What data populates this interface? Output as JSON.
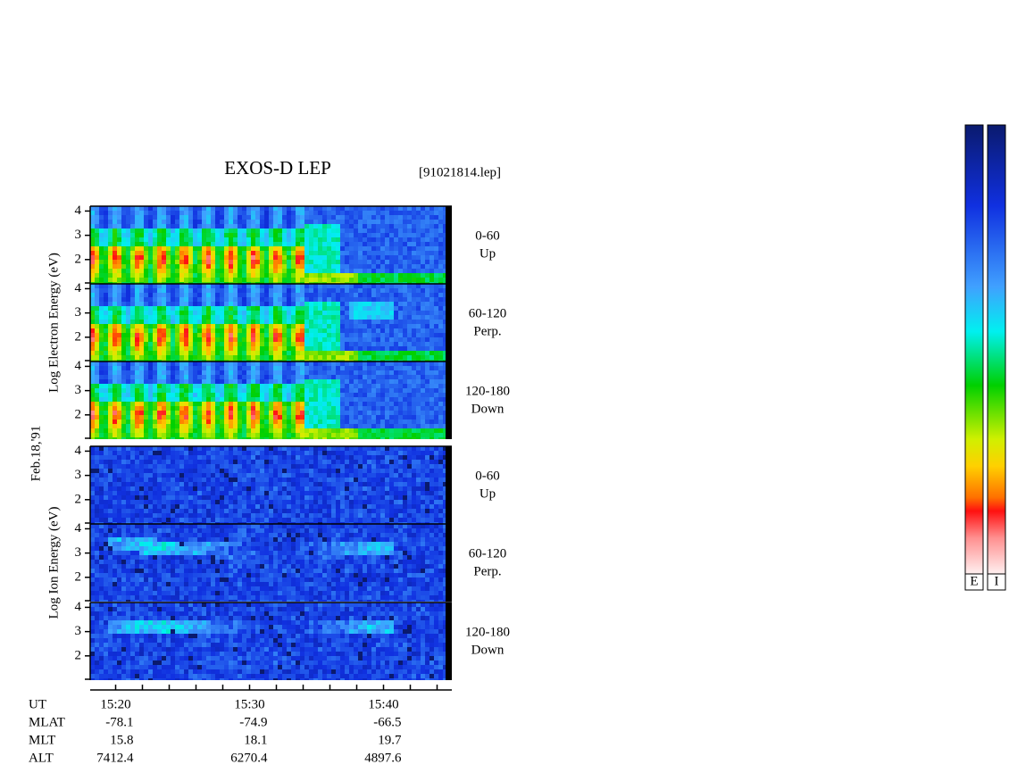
{
  "chart_data": {
    "type": "spectrogram",
    "title": "EXOS-D LEP",
    "file": "[91021814.lep]",
    "date": "Feb.18,'91",
    "groups": [
      {
        "label": "Log Electron Energy (eV)",
        "species": "electron",
        "panels": [
          {
            "pitch": "0-60",
            "dir": "Up"
          },
          {
            "pitch": "60-120",
            "dir": "Perp."
          },
          {
            "pitch": "120-180",
            "dir": "Down"
          }
        ]
      },
      {
        "label": "Log Ion Energy (eV)",
        "species": "ion",
        "panels": [
          {
            "pitch": "0-60",
            "dir": "Up"
          },
          {
            "pitch": "60-120",
            "dir": "Perp."
          },
          {
            "pitch": "120-180",
            "dir": "Down"
          }
        ]
      }
    ],
    "ylim": [
      1,
      4.2
    ],
    "yticks": [
      2,
      3,
      4
    ],
    "xlim": [
      918.1,
      945.1
    ],
    "xticks": [
      {
        "value": 920,
        "label": "15:20"
      },
      {
        "value": 930,
        "label": "15:30"
      },
      {
        "value": 940,
        "label": "15:40"
      }
    ],
    "xminor": [
      922,
      924,
      926,
      928,
      932,
      934,
      936,
      938,
      942,
      944
    ],
    "xlabel": "UT",
    "ephemeris": [
      {
        "name": "MLAT",
        "values": [
          -78.1,
          -74.9,
          -66.5
        ]
      },
      {
        "name": "MLT",
        "values": [
          15.8,
          18.1,
          19.7
        ]
      },
      {
        "name": "ALT",
        "values": [
          7412.4,
          6270.4,
          4897.6
        ]
      }
    ],
    "colorbars": [
      "E",
      "I"
    ]
  }
}
